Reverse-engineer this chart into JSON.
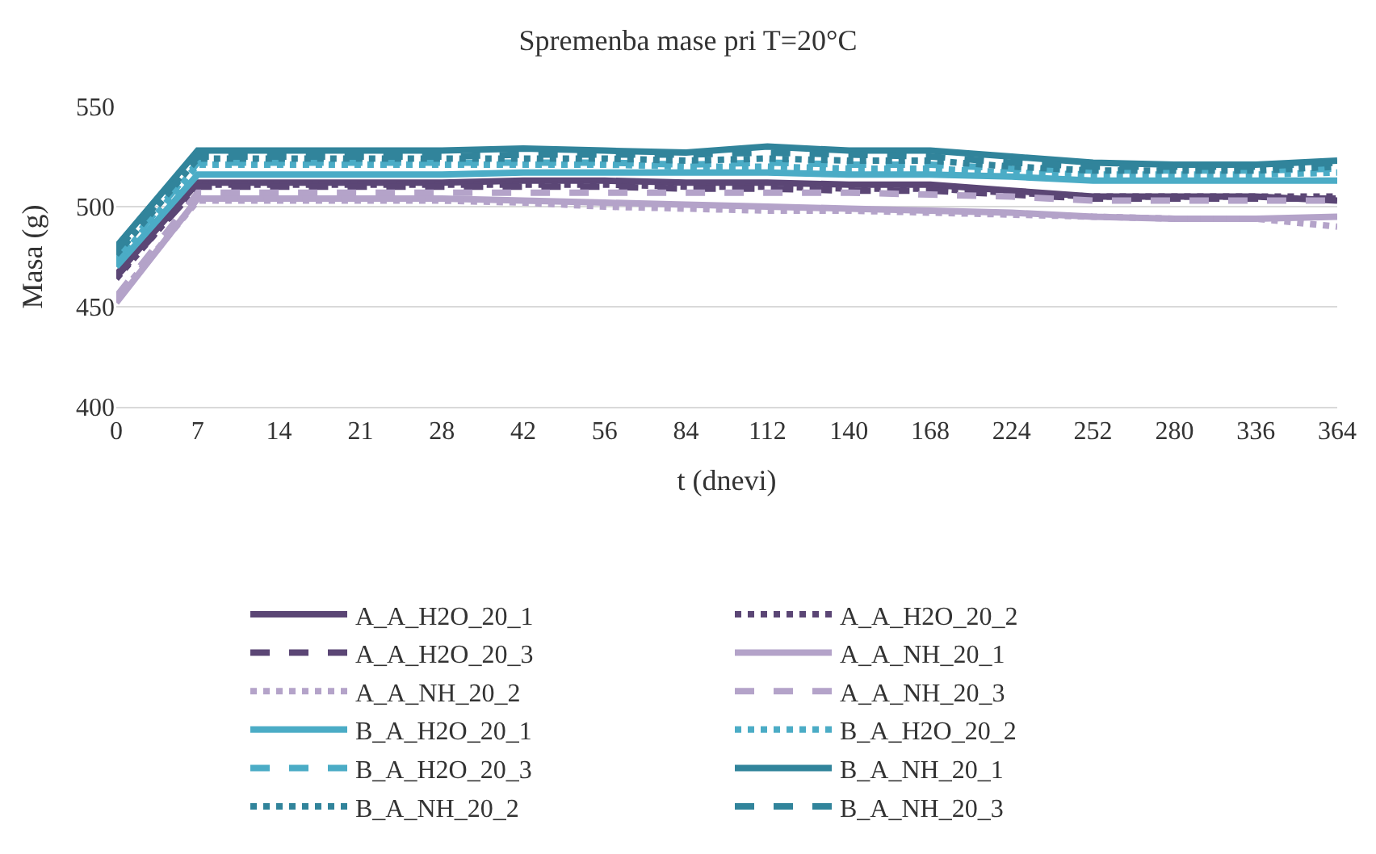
{
  "chart_data": {
    "type": "line",
    "title": "Spremenba mase pri T=20°C",
    "xlabel": "t (dnevi)",
    "ylabel": "Masa (g)",
    "categories": [
      "0",
      "7",
      "14",
      "21",
      "28",
      "42",
      "56",
      "84",
      "112",
      "140",
      "168",
      "224",
      "252",
      "280",
      "336",
      "364"
    ],
    "ylim": [
      400,
      550
    ],
    "yticks": [
      400,
      450,
      500,
      550
    ],
    "grid": "y",
    "legend": "bottom",
    "marker": "none",
    "series": [
      {
        "name": "A_A_H2O_20_1",
        "color": "#5b4675",
        "line_style": "solid",
        "values": [
          466,
          512,
          512,
          512,
          512,
          513,
          513,
          512,
          512,
          511,
          511,
          508,
          505,
          505,
          505,
          503
        ]
      },
      {
        "name": "A_A_H2O_20_2",
        "color": "#5b4675",
        "line_style": "dotted",
        "values": [
          464,
          511,
          511,
          511,
          511,
          511,
          511,
          510,
          510,
          509,
          509,
          507,
          505,
          505,
          505,
          505
        ]
      },
      {
        "name": "A_A_H2O_20_3",
        "color": "#5b4675",
        "line_style": "dashed",
        "values": [
          465,
          510,
          510,
          510,
          510,
          510,
          510,
          509,
          509,
          508,
          508,
          506,
          504,
          504,
          504,
          504
        ]
      },
      {
        "name": "A_A_NH_20_1",
        "color": "#b4a3c9",
        "line_style": "solid",
        "values": [
          452,
          504,
          504,
          504,
          504,
          503,
          502,
          501,
          500,
          499,
          498,
          497,
          495,
          494,
          494,
          495
        ]
      },
      {
        "name": "A_A_NH_20_2",
        "color": "#b4a3c9",
        "line_style": "dotted",
        "values": [
          454,
          503,
          503,
          503,
          503,
          502,
          500,
          499,
          498,
          498,
          497,
          496,
          495,
          494,
          494,
          490
        ]
      },
      {
        "name": "A_A_NH_20_3",
        "color": "#b4a3c9",
        "line_style": "dashed",
        "values": [
          455,
          507,
          507,
          507,
          507,
          507,
          507,
          507,
          507,
          507,
          506,
          505,
          503,
          503,
          503,
          503
        ]
      },
      {
        "name": "B_A_H2O_20_1",
        "color": "#4bacc6",
        "line_style": "solid",
        "values": [
          470,
          516,
          516,
          516,
          516,
          517,
          517,
          517,
          517,
          516,
          516,
          515,
          513,
          513,
          513,
          513
        ]
      },
      {
        "name": "B_A_H2O_20_2",
        "color": "#4bacc6",
        "line_style": "dotted",
        "values": [
          472,
          521,
          521,
          521,
          521,
          521,
          521,
          520,
          520,
          519,
          519,
          517,
          516,
          516,
          516,
          517
        ]
      },
      {
        "name": "B_A_H2O_20_3",
        "color": "#4bacc6",
        "line_style": "dashed",
        "values": [
          474,
          522,
          522,
          522,
          522,
          522,
          522,
          521,
          522,
          521,
          521,
          519,
          518,
          518,
          518,
          519
        ]
      },
      {
        "name": "B_A_NH_20_1",
        "color": "#31849b",
        "line_style": "solid",
        "values": [
          480,
          528,
          528,
          528,
          528,
          529,
          528,
          527,
          530,
          528,
          528,
          525,
          522,
          521,
          521,
          523
        ]
      },
      {
        "name": "B_A_NH_20_2",
        "color": "#31849b",
        "line_style": "dotted",
        "values": [
          476,
          524,
          524,
          524,
          524,
          524,
          524,
          523,
          524,
          523,
          523,
          520,
          518,
          518,
          518,
          520
        ]
      },
      {
        "name": "B_A_NH_20_3",
        "color": "#31849b",
        "line_style": "dashed",
        "values": [
          478,
          525,
          525,
          525,
          525,
          526,
          526,
          526,
          527,
          526,
          525,
          522,
          520,
          520,
          520,
          522
        ]
      }
    ]
  }
}
